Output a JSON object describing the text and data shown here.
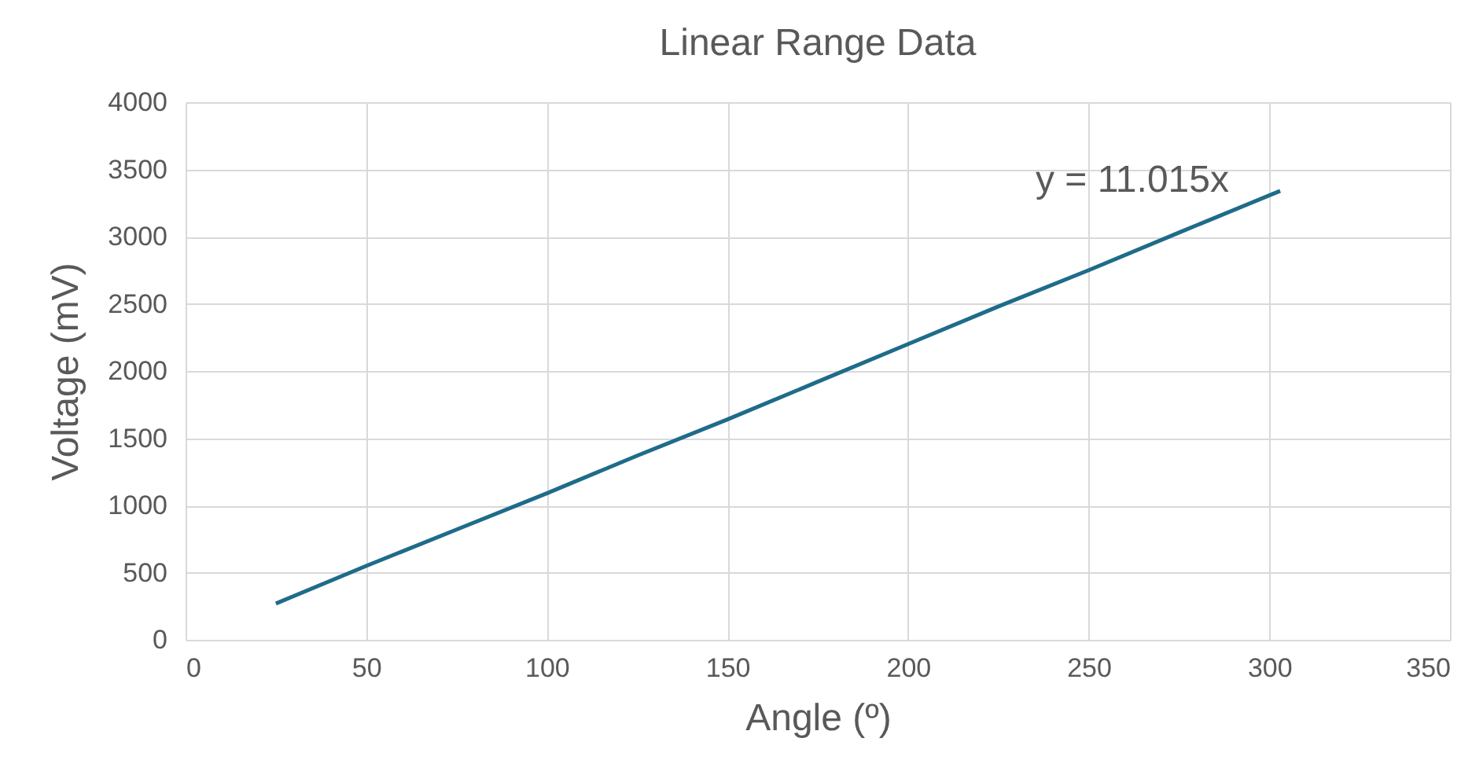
{
  "chart_data": {
    "type": "line",
    "title": "Linear Range Data",
    "xlabel": "Angle (º)",
    "ylabel": "Voltage (mV)",
    "x": [
      25,
      50,
      75,
      100,
      125,
      150,
      175,
      200,
      225,
      250,
      275,
      303
    ],
    "series": [
      {
        "color": "#1f6b8a",
        "values": [
          270,
          550,
          820,
          1090,
          1370,
          1640,
          1920,
          2200,
          2480,
          2750,
          3030,
          3340
        ]
      }
    ],
    "xlim": [
      0,
      350
    ],
    "xticks": [
      0,
      50,
      100,
      150,
      200,
      250,
      300,
      350
    ],
    "ylim": [
      0,
      4000
    ],
    "yticks": [
      0,
      500,
      1000,
      1500,
      2000,
      2500,
      3000,
      3500,
      4000
    ],
    "grid": true,
    "marker": "none",
    "line_style": "solid",
    "annotations": [
      "y = 11.015x"
    ]
  }
}
